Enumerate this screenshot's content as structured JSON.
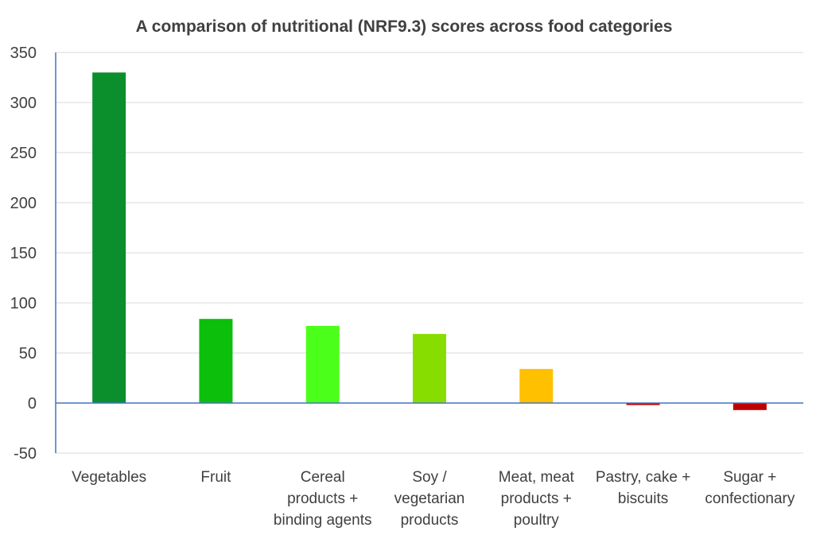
{
  "chart_data": {
    "type": "bar",
    "title": "A comparison of nutritional (NRF9.3) scores across food categories",
    "xlabel": "",
    "ylabel": "",
    "ylim": [
      -50,
      350
    ],
    "yticks": [
      350,
      300,
      250,
      200,
      150,
      100,
      50,
      0,
      -50
    ],
    "grid": true,
    "legend": "none",
    "categories": [
      [
        "Vegetables"
      ],
      [
        "Fruit"
      ],
      [
        "Cereal",
        "products +",
        "binding agents"
      ],
      [
        "Soy /",
        "vegetarian",
        "products"
      ],
      [
        "Meat, meat",
        "products +",
        "poultry"
      ],
      [
        "Pastry, cake +",
        "biscuits"
      ],
      [
        "Sugar +",
        "confectionary"
      ]
    ],
    "values": [
      330,
      84,
      77,
      69,
      34,
      -2,
      -7
    ],
    "colors": [
      "#0b8f2c",
      "#0bbf0b",
      "#4cff1a",
      "#88dd00",
      "#ffc000",
      "#c00000",
      "#c00000"
    ]
  }
}
